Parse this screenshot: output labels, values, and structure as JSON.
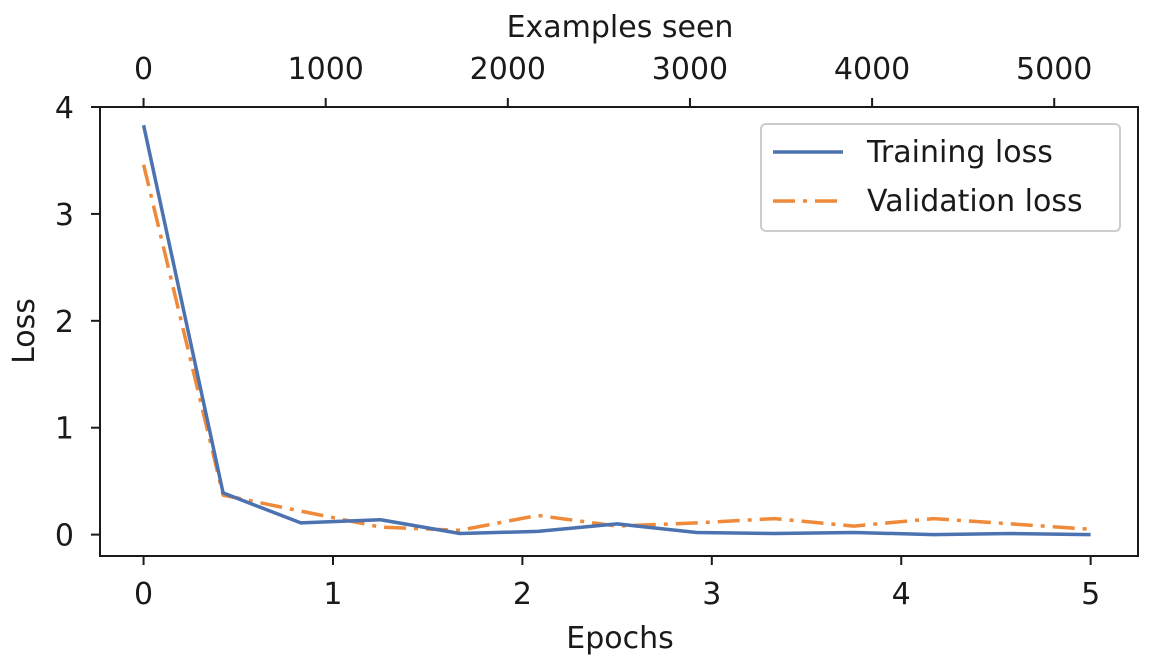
{
  "chart_data": {
    "type": "line",
    "xlabel": "Epochs",
    "x2label": "Examples seen",
    "ylabel": "Loss",
    "xlim": [
      -0.23,
      5.25
    ],
    "ylim": [
      -0.2,
      4.0
    ],
    "x_ticks": [
      0,
      1,
      2,
      3,
      4,
      5
    ],
    "x2_ticks": [
      0,
      1000,
      2000,
      3000,
      4000,
      5000
    ],
    "x2_per_x": 1040,
    "y_ticks": [
      0,
      1,
      2,
      3,
      4
    ],
    "grid": false,
    "legend_position": "top-right",
    "series": [
      {
        "name": "Training loss",
        "color": "#4c72b0",
        "style": "solid",
        "x": [
          0,
          0.42,
          0.83,
          1.25,
          1.67,
          2.08,
          2.5,
          2.92,
          3.33,
          3.75,
          4.17,
          4.58,
          5.0
        ],
        "y": [
          3.83,
          0.39,
          0.11,
          0.14,
          0.01,
          0.03,
          0.1,
          0.02,
          0.01,
          0.02,
          0.0,
          0.01,
          0.0
        ]
      },
      {
        "name": "Validation loss",
        "color": "#ee8a3a",
        "style": "dashdot",
        "x": [
          0,
          0.42,
          0.83,
          1.25,
          1.67,
          2.08,
          2.5,
          2.92,
          3.33,
          3.75,
          4.17,
          4.58,
          5.0
        ],
        "y": [
          3.46,
          0.37,
          0.22,
          0.07,
          0.04,
          0.18,
          0.08,
          0.11,
          0.15,
          0.08,
          0.15,
          0.1,
          0.05
        ]
      }
    ]
  }
}
